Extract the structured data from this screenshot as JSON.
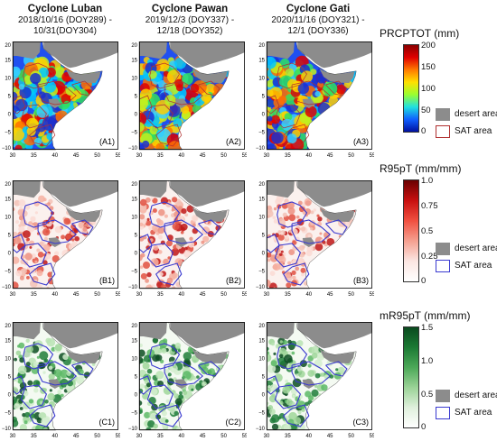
{
  "columns": [
    {
      "title": "Cyclone Luban",
      "line1": "2018/10/16 (DOY289) -",
      "line2": "10/31(DOY304)"
    },
    {
      "title": "Cyclone Pawan",
      "line1": "2019/12/3 (DOY337) -",
      "line2": "12/18 (DOY352)"
    },
    {
      "title": "Cyclone Gati",
      "line1": "2020/11/16 (DOY321) -",
      "line2": "12/1 (DOY336)"
    }
  ],
  "axes": {
    "x_ticks": [
      "30",
      "35",
      "40",
      "45",
      "50",
      "55"
    ],
    "y_ticks": [
      "20",
      "15",
      "10",
      "5",
      "0",
      "−5",
      "−10"
    ]
  },
  "rows": [
    {
      "panel_labels": [
        "(A1)",
        "(A2)",
        "(A3)"
      ],
      "colorbar_title": "PRCPTOT (mm)",
      "ticks": [
        "200",
        "150",
        "100",
        "50",
        "0"
      ],
      "legend": {
        "desert": "desert area",
        "sat": "SAT area"
      },
      "colors": {
        "boundary": "#b03030",
        "sat_swatch": "#b03030"
      }
    },
    {
      "panel_labels": [
        "(B1)",
        "(B2)",
        "(B3)"
      ],
      "colorbar_title": "R95pT (mm/mm)",
      "ticks": [
        "1.0",
        "0.75",
        "0.5",
        "0.25",
        "0"
      ],
      "legend": {
        "desert": "desert area",
        "sat": "SAT area"
      },
      "colors": {
        "boundary": "#3a3ad0",
        "sat_swatch": "#3a3ad0"
      }
    },
    {
      "panel_labels": [
        "(C1)",
        "(C2)",
        "(C3)"
      ],
      "colorbar_title": "mR95pT (mm/mm)",
      "ticks": [
        "1.5",
        "1.0",
        "0.5",
        "0"
      ],
      "legend": {
        "desert": "desert area",
        "sat": "SAT area"
      },
      "colors": {
        "boundary": "#3a3ad0",
        "sat_swatch": "#3a3ad0"
      }
    }
  ],
  "colors": {
    "desert": "#8c8c8c",
    "ocean": "#ffffff"
  }
}
